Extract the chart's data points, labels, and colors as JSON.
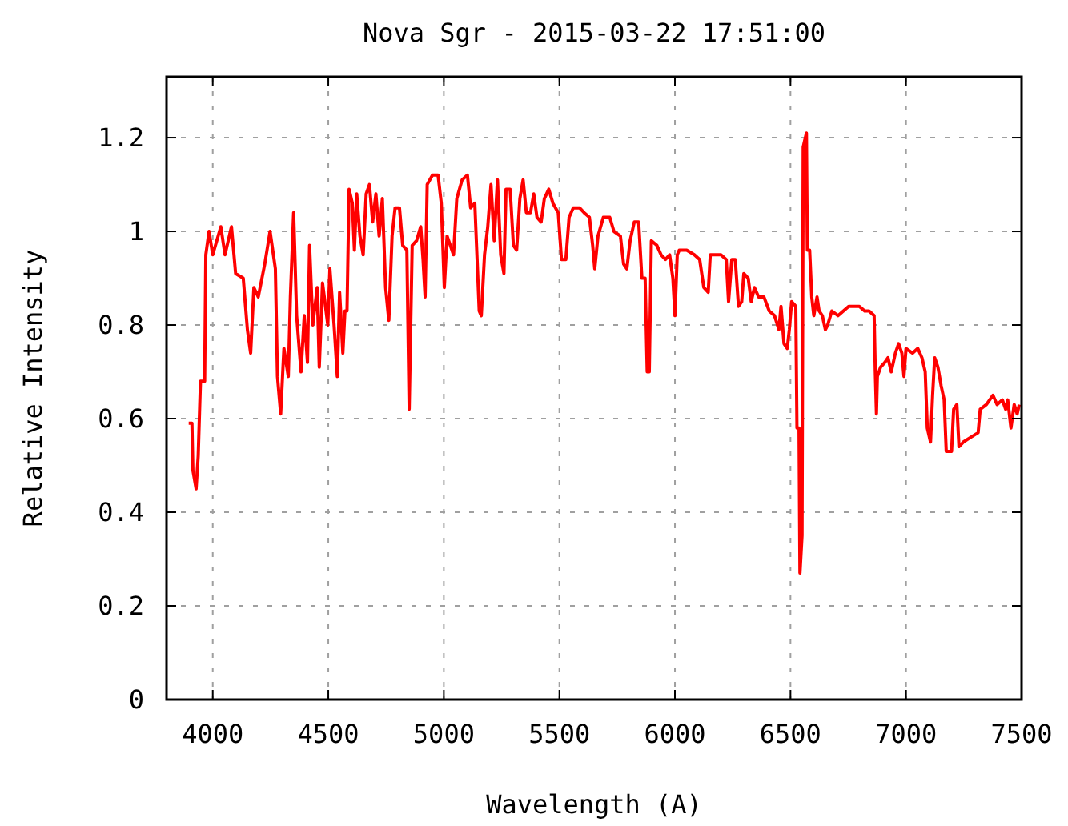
{
  "chart_data": {
    "type": "line",
    "title": "Nova Sgr - 2015-03-22 17:51:00",
    "xlabel": "Wavelength (A)",
    "ylabel": "Relative Intensity",
    "xlim": [
      3800,
      7500
    ],
    "xticks": [
      4000,
      4500,
      5000,
      5500,
      6000,
      6500,
      7000,
      7500
    ],
    "ylim": [
      0,
      1.33
    ],
    "yticks": [
      0,
      0.2,
      0.4,
      0.6,
      0.8,
      1,
      1.2
    ],
    "grid": true,
    "line_style": "solid",
    "series": [
      {
        "color": "#ff0000",
        "x": [
          3896,
          3910,
          3914,
          3928,
          3937,
          3947,
          3965,
          3970,
          3984,
          4000,
          4035,
          4053,
          4081,
          4099,
          4132,
          4150,
          4164,
          4178,
          4197,
          4225,
          4248,
          4271,
          4280,
          4294,
          4308,
          4327,
          4336,
          4350,
          4363,
          4382,
          4396,
          4410,
          4419,
          4433,
          4452,
          4461,
          4475,
          4498,
          4507,
          4525,
          4539,
          4549,
          4563,
          4572,
          4581,
          4590,
          4604,
          4613,
          4623,
          4637,
          4651,
          4664,
          4678,
          4692,
          4706,
          4720,
          4734,
          4748,
          4762,
          4776,
          4789,
          4808,
          4822,
          4840,
          4850,
          4863,
          4882,
          4900,
          4910,
          4919,
          4928,
          4951,
          4975,
          4989,
          5002,
          5014,
          5042,
          5056,
          5079,
          5102,
          5116,
          5134,
          5153,
          5162,
          5176,
          5190,
          5204,
          5218,
          5232,
          5246,
          5260,
          5269,
          5287,
          5301,
          5315,
          5329,
          5343,
          5357,
          5375,
          5389,
          5403,
          5421,
          5435,
          5454,
          5472,
          5495,
          5509,
          5528,
          5542,
          5560,
          5588,
          5607,
          5630,
          5644,
          5653,
          5667,
          5690,
          5718,
          5736,
          5764,
          5778,
          5792,
          5806,
          5824,
          5843,
          5857,
          5871,
          5880,
          5889,
          5898,
          5922,
          5940,
          5959,
          5977,
          5991,
          6000,
          6010,
          6019,
          6051,
          6084,
          6107,
          6125,
          6144,
          6153,
          6199,
          6222,
          6232,
          6246,
          6261,
          6275,
          6289,
          6298,
          6317,
          6330,
          6344,
          6362,
          6385,
          6408,
          6431,
          6450,
          6459,
          6472,
          6486,
          6495,
          6505,
          6523,
          6528,
          6537,
          6541,
          6550,
          6555,
          6569,
          6573,
          6583,
          6592,
          6601,
          6615,
          6624,
          6638,
          6651,
          6661,
          6679,
          6706,
          6729,
          6752,
          6798,
          6821,
          6840,
          6862,
          6867,
          6872,
          6876,
          6890,
          6908,
          6922,
          6936,
          6954,
          6968,
          6982,
          6991,
          7000,
          7028,
          7051,
          7069,
          7083,
          7092,
          7106,
          7115,
          7124,
          7138,
          7152,
          7165,
          7174,
          7197,
          7206,
          7220,
          7229,
          7248,
          7280,
          7312,
          7321,
          7348,
          7376,
          7394,
          7417,
          7431,
          7440,
          7454,
          7468,
          7481,
          7490
        ],
        "values": [
          0.59,
          0.59,
          0.49,
          0.45,
          0.52,
          0.68,
          0.68,
          0.95,
          1.0,
          0.95,
          1.01,
          0.95,
          1.01,
          0.91,
          0.9,
          0.79,
          0.74,
          0.88,
          0.86,
          0.93,
          1.0,
          0.92,
          0.69,
          0.61,
          0.75,
          0.69,
          0.86,
          1.04,
          0.82,
          0.7,
          0.82,
          0.72,
          0.97,
          0.8,
          0.88,
          0.71,
          0.89,
          0.8,
          0.92,
          0.8,
          0.69,
          0.87,
          0.74,
          0.83,
          0.83,
          1.09,
          1.06,
          0.96,
          1.08,
          0.99,
          0.95,
          1.08,
          1.1,
          1.02,
          1.08,
          0.99,
          1.07,
          0.88,
          0.81,
          0.99,
          1.05,
          1.05,
          0.97,
          0.96,
          0.62,
          0.97,
          0.98,
          1.01,
          0.94,
          0.86,
          1.1,
          1.12,
          1.12,
          1.06,
          0.88,
          0.99,
          0.95,
          1.07,
          1.11,
          1.12,
          1.05,
          1.06,
          0.83,
          0.82,
          0.95,
          1.01,
          1.1,
          0.98,
          1.11,
          0.95,
          0.91,
          1.09,
          1.09,
          0.97,
          0.96,
          1.07,
          1.11,
          1.04,
          1.04,
          1.08,
          1.03,
          1.02,
          1.07,
          1.09,
          1.06,
          1.04,
          0.94,
          0.94,
          1.03,
          1.05,
          1.05,
          1.04,
          1.03,
          0.97,
          0.92,
          0.99,
          1.03,
          1.03,
          1.0,
          0.99,
          0.93,
          0.92,
          0.98,
          1.02,
          1.02,
          0.9,
          0.9,
          0.7,
          0.7,
          0.98,
          0.97,
          0.95,
          0.94,
          0.95,
          0.9,
          0.82,
          0.95,
          0.96,
          0.96,
          0.95,
          0.94,
          0.88,
          0.87,
          0.95,
          0.95,
          0.94,
          0.85,
          0.94,
          0.94,
          0.84,
          0.85,
          0.91,
          0.9,
          0.85,
          0.88,
          0.86,
          0.86,
          0.83,
          0.82,
          0.79,
          0.84,
          0.76,
          0.75,
          0.79,
          0.85,
          0.84,
          0.58,
          0.58,
          0.27,
          0.35,
          1.18,
          1.21,
          0.96,
          0.96,
          0.86,
          0.82,
          0.86,
          0.83,
          0.82,
          0.79,
          0.8,
          0.83,
          0.82,
          0.83,
          0.84,
          0.84,
          0.83,
          0.83,
          0.82,
          0.7,
          0.61,
          0.69,
          0.71,
          0.72,
          0.73,
          0.7,
          0.74,
          0.76,
          0.74,
          0.69,
          0.75,
          0.74,
          0.75,
          0.73,
          0.7,
          0.58,
          0.55,
          0.65,
          0.73,
          0.71,
          0.67,
          0.64,
          0.53,
          0.53,
          0.62,
          0.63,
          0.54,
          0.55,
          0.56,
          0.57,
          0.62,
          0.63,
          0.65,
          0.63,
          0.64,
          0.62,
          0.64,
          0.58,
          0.63,
          0.61,
          0.63
        ]
      }
    ]
  }
}
